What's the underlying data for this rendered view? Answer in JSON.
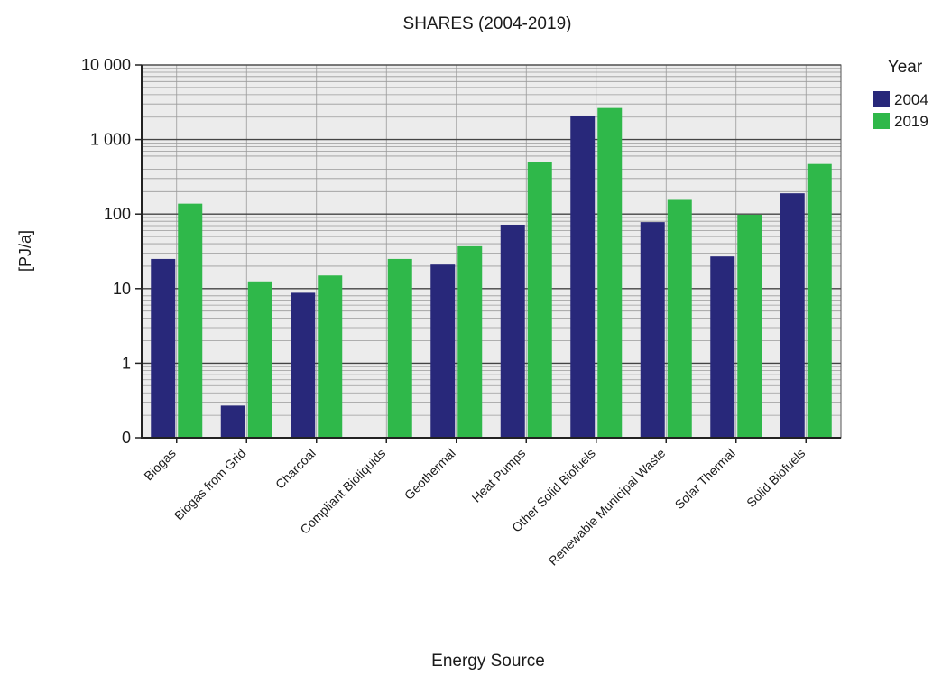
{
  "chart_data": {
    "type": "bar",
    "title": "SHARES (2004-2019)",
    "xlabel": "Energy Source",
    "ylabel": "[PJ/a]",
    "yscale": "log",
    "ylim": [
      0.1,
      10000
    ],
    "yticks": [
      {
        "value": 0.1,
        "label": "0"
      },
      {
        "value": 1,
        "label": "1"
      },
      {
        "value": 10,
        "label": "10"
      },
      {
        "value": 100,
        "label": "100"
      },
      {
        "value": 1000,
        "label": "1 000"
      },
      {
        "value": 10000,
        "label": "10 000"
      }
    ],
    "grid": true,
    "legend": {
      "title": "Year",
      "placement": "right"
    },
    "categories": [
      "Biogas",
      "Biogas from Grid",
      "Charcoal",
      "Compliant Bioliquids",
      "Geothermal",
      "Heat Pumps",
      "Other Solid Biofuels",
      "Renewable Municipal Waste",
      "Solar Thermal",
      "Solid Biofuels"
    ],
    "series": [
      {
        "name": "2004",
        "color": "#28287a",
        "values": [
          25,
          0.27,
          8.8,
          null,
          21,
          72,
          2100,
          78,
          27,
          190
        ]
      },
      {
        "name": "2019",
        "color": "#2fb84a",
        "values": [
          138,
          12.5,
          15,
          25,
          37,
          500,
          2650,
          155,
          98,
          470
        ]
      }
    ],
    "colors": {
      "plot_background": "#ececec",
      "major_grid": "#444444",
      "minor_grid": "#9a9a9a",
      "axis": "#222222"
    }
  }
}
